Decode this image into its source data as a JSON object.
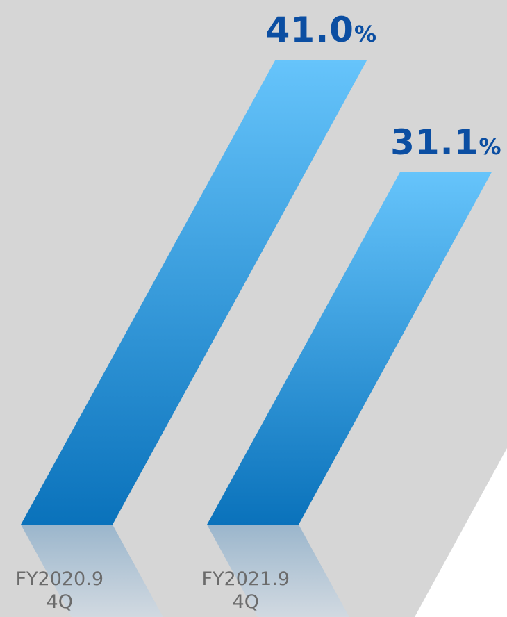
{
  "chart_data": {
    "type": "bar",
    "categories": [
      {
        "line1": "FY2020.9",
        "line2": "4Q"
      },
      {
        "line1": "FY2021.9",
        "line2": "4Q"
      }
    ],
    "values": [
      41.0,
      31.1
    ],
    "value_labels": [
      {
        "number": "41.0",
        "unit": "%"
      },
      {
        "number": "31.1",
        "unit": "%"
      }
    ],
    "ylim": [
      0,
      41.0
    ],
    "grid": false,
    "legend": "none",
    "colors": {
      "background": "#d6d6d6",
      "panel_cutout": "#ffffff",
      "bar_top": "#66c4fb",
      "bar_bottom": "#0a72bb",
      "reflection_top": "#9bb6cc",
      "reflection_bottom": "#d4dbe2",
      "value_text": "#0b4ea2",
      "category_text": "#6b6b6b"
    }
  }
}
